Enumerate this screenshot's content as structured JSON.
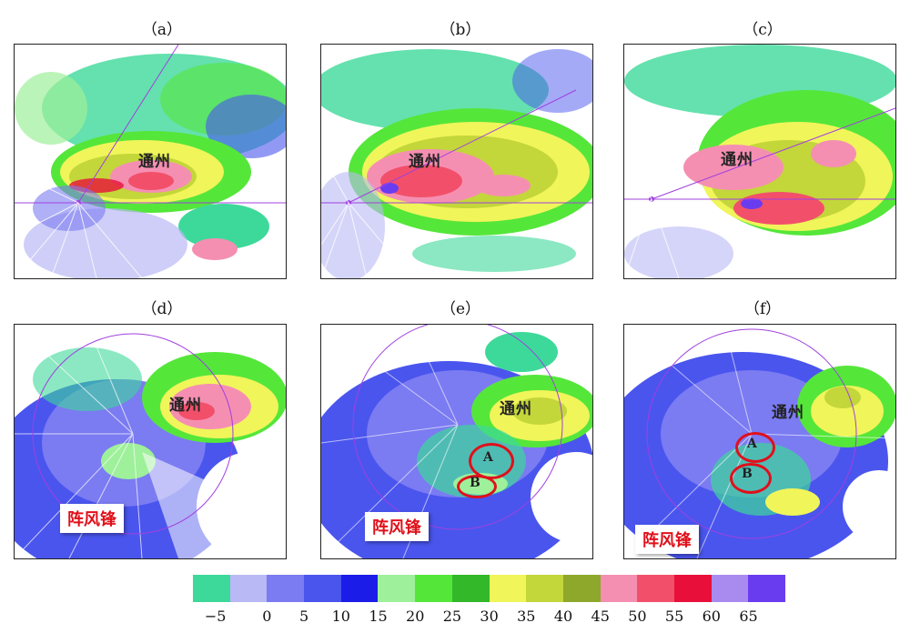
{
  "panels": [
    {
      "id": "a",
      "label": "（a）",
      "city": "通州"
    },
    {
      "id": "b",
      "label": "（b）",
      "city": "通州"
    },
    {
      "id": "c",
      "label": "（c）",
      "city": "通州"
    },
    {
      "id": "d",
      "label": "（d）",
      "city": "通州",
      "callout": "阵风锋"
    },
    {
      "id": "e",
      "label": "（e）",
      "city": "通州",
      "callout": "阵风锋",
      "markers": [
        "A",
        "B"
      ]
    },
    {
      "id": "f",
      "label": "（f）",
      "city": "通州",
      "callout": "阵风锋",
      "markers": [
        "A",
        "B"
      ]
    }
  ],
  "legend": {
    "colors": [
      "#3dd99a",
      "#b9b9f5",
      "#7b7bf2",
      "#4a55ee",
      "#1c1ce8",
      "#9ef09a",
      "#55e63a",
      "#33b82a",
      "#f0f55a",
      "#c3d63a",
      "#8ea82c",
      "#f58fb2",
      "#f2506a",
      "#e8103a",
      "#a98bf0",
      "#6a3cf0"
    ],
    "ticks": [
      "−5",
      "0",
      "5",
      "10",
      "15",
      "20",
      "25",
      "30",
      "35",
      "40",
      "45",
      "50",
      "55",
      "60",
      "65"
    ]
  },
  "colors": {
    "accent": "#e0101a"
  }
}
